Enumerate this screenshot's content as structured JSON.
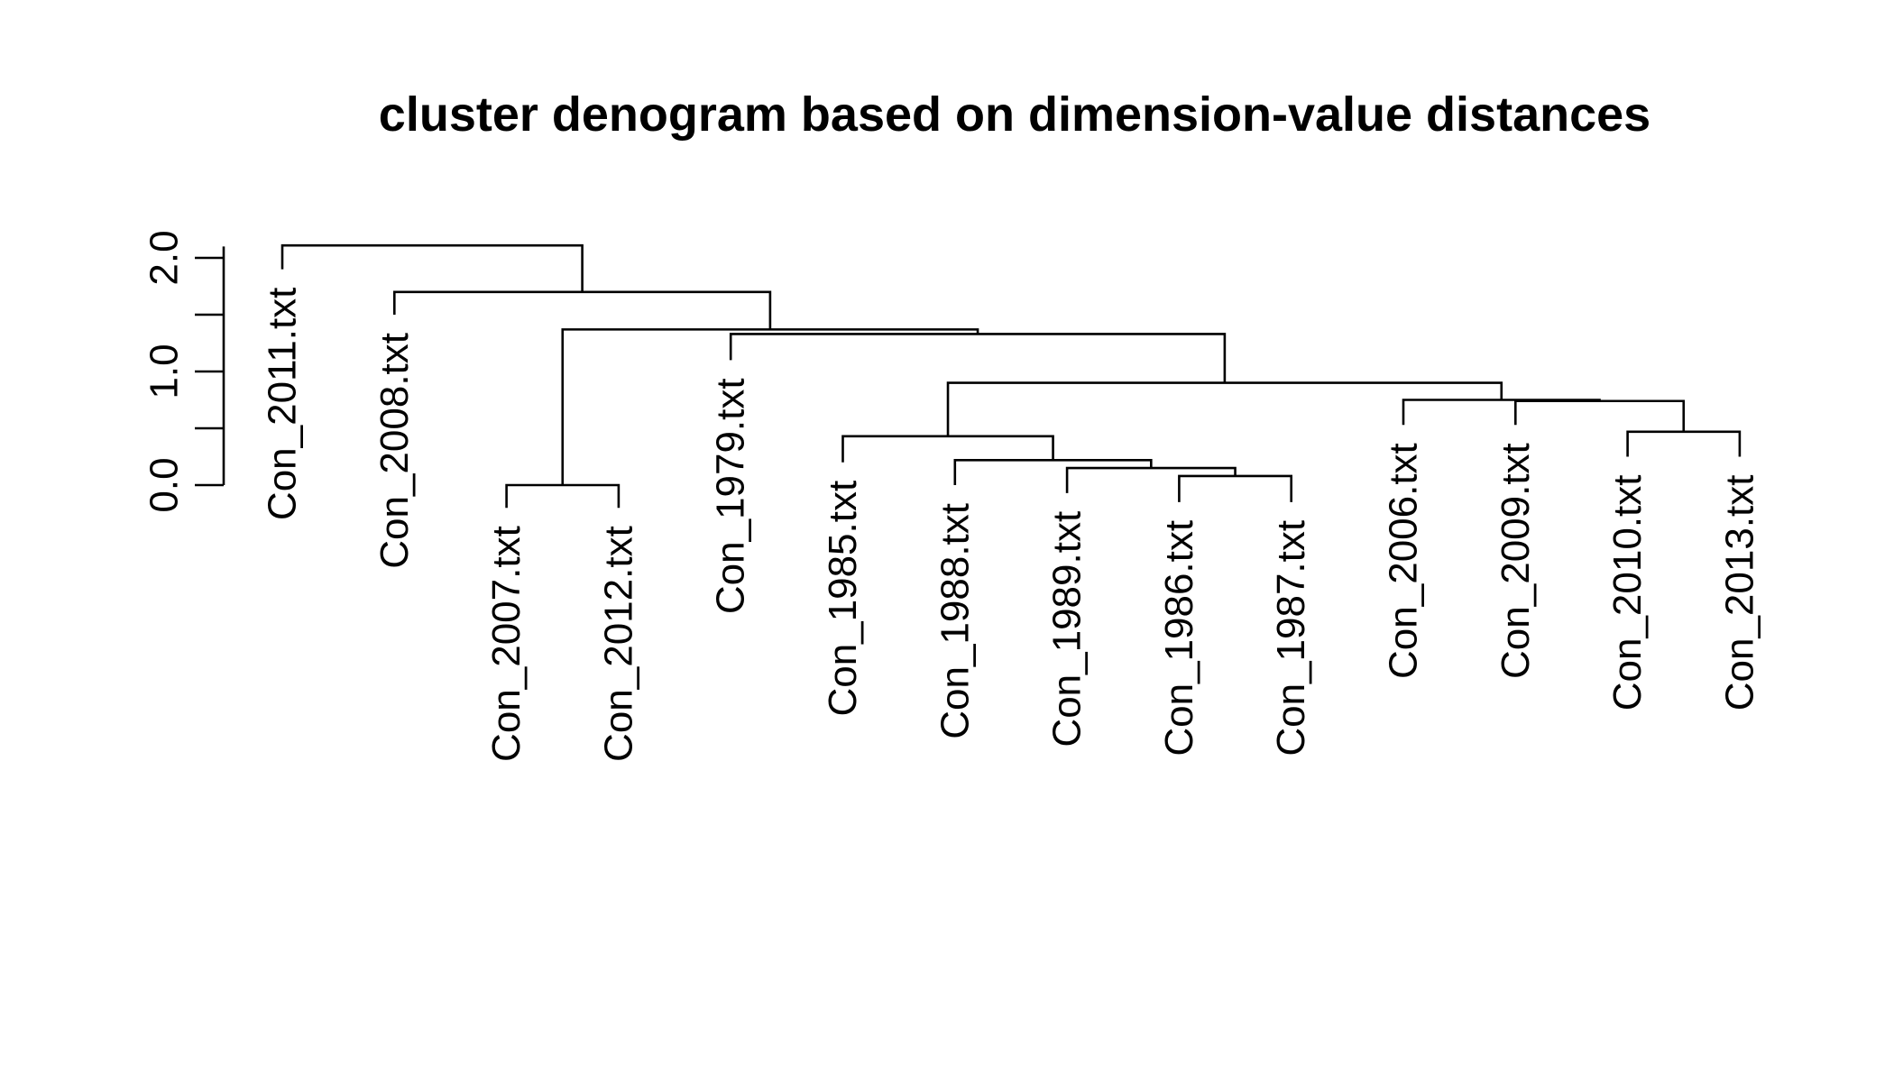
{
  "chart_data": {
    "type": "dendrogram",
    "title": "cluster denogram based on dimension-value distances",
    "xlabel": "",
    "ylabel": "",
    "ylim": [
      0,
      2.1
    ],
    "yticks": [
      0.0,
      0.5,
      1.0,
      1.5,
      2.0
    ],
    "ytick_labels": [
      "0.0",
      "",
      "1.0",
      "",
      "2.0"
    ],
    "leaves": [
      {
        "label": "Con_2011.txt",
        "height": 1.9
      },
      {
        "label": "Con_2008.txt",
        "height": 1.5
      },
      {
        "label": "Con_2007.txt",
        "height": -0.2
      },
      {
        "label": "Con_2012.txt",
        "height": -0.2
      },
      {
        "label": "Con_1979.txt",
        "height": 1.1
      },
      {
        "label": "Con_1985.txt",
        "height": 0.2
      },
      {
        "label": "Con_1988.txt",
        "height": 0.0
      },
      {
        "label": "Con_1989.txt",
        "height": -0.07
      },
      {
        "label": "Con_1986.txt",
        "height": -0.15
      },
      {
        "label": "Con_1987.txt",
        "height": -0.15
      },
      {
        "label": "Con_2006.txt",
        "height": 0.53
      },
      {
        "label": "Con_2009.txt",
        "height": 0.53
      },
      {
        "label": "Con_2010.txt",
        "height": 0.25
      },
      {
        "label": "Con_2013.txt",
        "height": 0.25
      }
    ],
    "merges": [
      {
        "left": "L2",
        "right": "L3",
        "height": 0.0
      },
      {
        "left": "L8",
        "right": "L9",
        "height": 0.08
      },
      {
        "left": "L7",
        "right": "N1",
        "height": 0.15
      },
      {
        "left": "L6",
        "right": "N2",
        "height": 0.22
      },
      {
        "left": "L5",
        "right": "N3",
        "height": 0.43
      },
      {
        "left": "L12",
        "right": "L13",
        "height": 0.47
      },
      {
        "left": "L11",
        "right": "N5",
        "height": 0.74
      },
      {
        "left": "L10",
        "right": "N6",
        "height": 0.75
      },
      {
        "left": "N4",
        "right": "N7",
        "height": 0.9
      },
      {
        "left": "L4",
        "right": "N8",
        "height": 1.33
      },
      {
        "left": "N0",
        "right": "N9",
        "height": 1.37
      },
      {
        "left": "L1",
        "right": "N10",
        "height": 1.7
      },
      {
        "left": "L0",
        "right": "N11",
        "height": 2.11
      }
    ]
  }
}
